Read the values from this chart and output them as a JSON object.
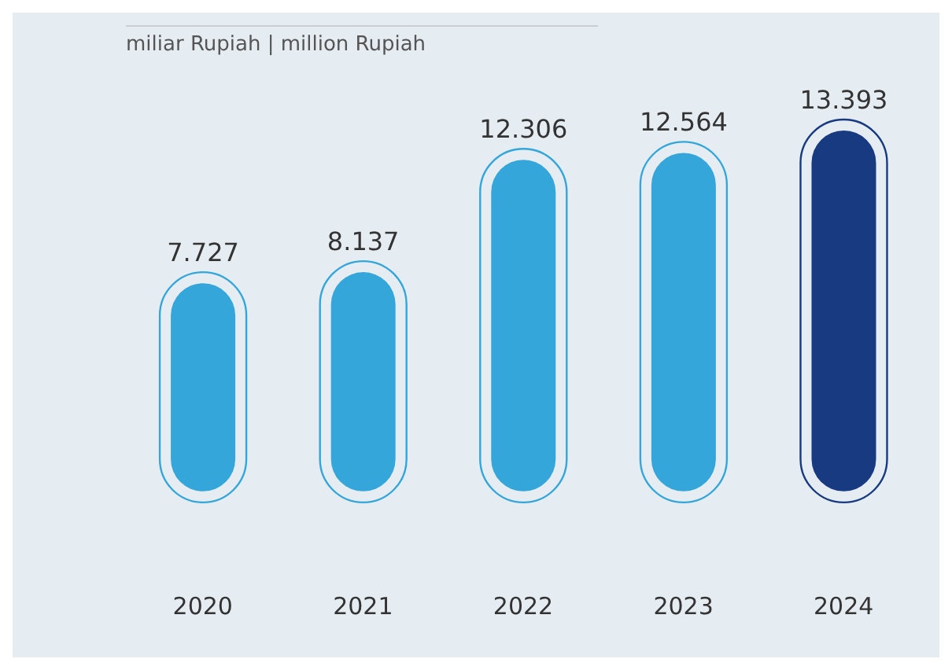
{
  "chart_data": {
    "type": "bar",
    "title": "miliar Rupiah | million Rupiah",
    "categories": [
      "2020",
      "2021",
      "2022",
      "2023",
      "2024"
    ],
    "values": [
      7727,
      8137,
      12306,
      12564,
      13393
    ],
    "value_labels": [
      "7.727",
      "8.137",
      "12.306",
      "12.564",
      "13.393"
    ],
    "colors": [
      "#34a6d9",
      "#34a6d9",
      "#34a6d9",
      "#34a6d9",
      "#173a80"
    ],
    "grid": false,
    "legend": false
  }
}
